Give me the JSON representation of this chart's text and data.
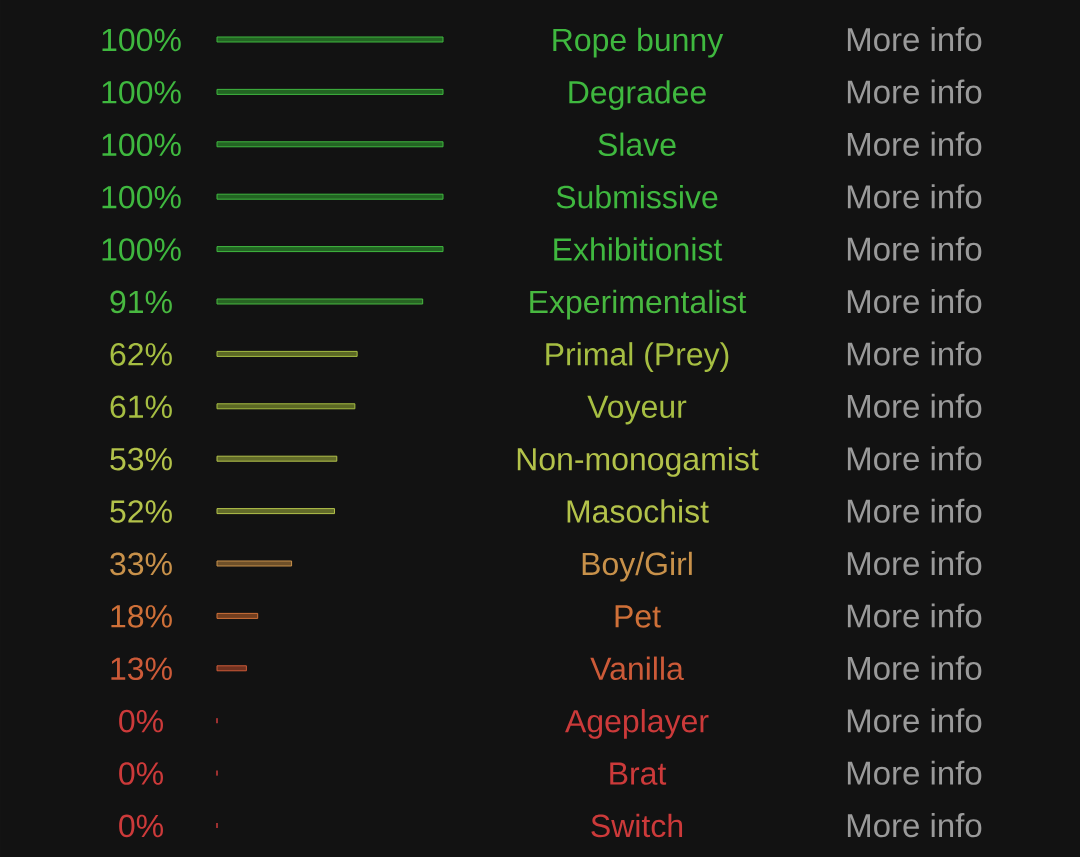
{
  "chart_data": {
    "type": "bar",
    "orientation": "horizontal",
    "categories": [
      "Rope bunny",
      "Degradee",
      "Slave",
      "Submissive",
      "Exhibitionist",
      "Experimentalist",
      "Primal (Prey)",
      "Voyeur",
      "Non-monogamist",
      "Masochist",
      "Boy/Girl",
      "Pet",
      "Vanilla",
      "Ageplayer",
      "Brat",
      "Switch"
    ],
    "values": [
      100,
      100,
      100,
      100,
      100,
      91,
      62,
      61,
      53,
      52,
      33,
      18,
      13,
      0,
      0,
      0
    ],
    "colors": [
      "#3fb83f",
      "#3fb83f",
      "#3fb83f",
      "#3fb83f",
      "#3fb83f",
      "#48b840",
      "#a6be42",
      "#a6be42",
      "#b3c24a",
      "#b3c24a",
      "#c8914a",
      "#cf7038",
      "#cc5a38",
      "#cc3a3a",
      "#cc3a3a",
      "#cc3a3a"
    ],
    "value_labels": [
      "100%",
      "100%",
      "100%",
      "100%",
      "100%",
      "91%",
      "62%",
      "61%",
      "53%",
      "52%",
      "33%",
      "18%",
      "13%",
      "0%",
      "0%",
      "0%"
    ],
    "annotations": [
      "More info",
      "More info",
      "More info",
      "More info",
      "More info",
      "More info",
      "More info",
      "More info",
      "More info",
      "More info",
      "More info",
      "More info",
      "More info",
      "More info",
      "More info",
      "More info"
    ]
  }
}
